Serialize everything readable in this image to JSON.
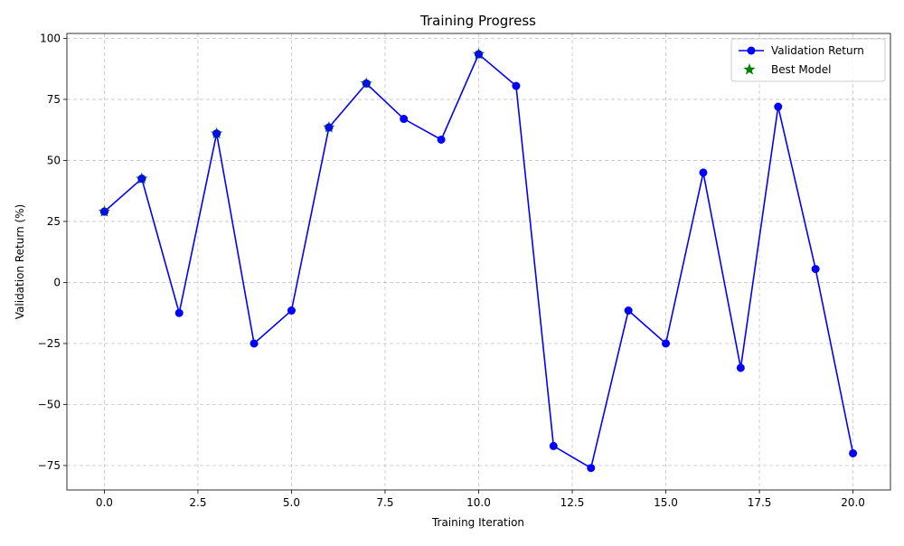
{
  "chart_data": {
    "type": "line",
    "title": "Training Progress",
    "xlabel": "Training Iteration",
    "ylabel": "Validation Return (%)",
    "xlim": [
      -1.0,
      21.0
    ],
    "ylim": [
      -85,
      102
    ],
    "x_ticks": [
      0.0,
      2.5,
      5.0,
      7.5,
      10.0,
      12.5,
      15.0,
      17.5,
      20.0
    ],
    "x_tick_labels": [
      "0.0",
      "2.5",
      "5.0",
      "7.5",
      "10.0",
      "12.5",
      "15.0",
      "17.5",
      "20.0"
    ],
    "y_ticks": [
      -75,
      -50,
      -25,
      0,
      25,
      50,
      75,
      100
    ],
    "y_tick_labels": [
      "−75",
      "−50",
      "−25",
      "0",
      "25",
      "50",
      "75",
      "100"
    ],
    "grid": true,
    "legend_position": "top-right",
    "series": [
      {
        "name": "Validation Return",
        "color": "#0000ff",
        "marker": "circle",
        "x": [
          0,
          1,
          2,
          3,
          4,
          5,
          6,
          7,
          8,
          9,
          10,
          11,
          12,
          13,
          14,
          15,
          16,
          17,
          18,
          19,
          20
        ],
        "y": [
          29,
          42.5,
          -12.5,
          61,
          -25,
          -11.5,
          63.5,
          81.5,
          67,
          58.5,
          93.5,
          80.5,
          -67,
          -76,
          -11.5,
          -25,
          45,
          -35,
          72,
          5.5,
          -70
        ]
      },
      {
        "name": "Best Model",
        "color": "#008000",
        "marker": "star",
        "x": [
          0,
          1,
          3,
          6,
          7,
          10
        ],
        "y": [
          29,
          42.5,
          61,
          63.5,
          81.5,
          93.5
        ]
      }
    ]
  }
}
